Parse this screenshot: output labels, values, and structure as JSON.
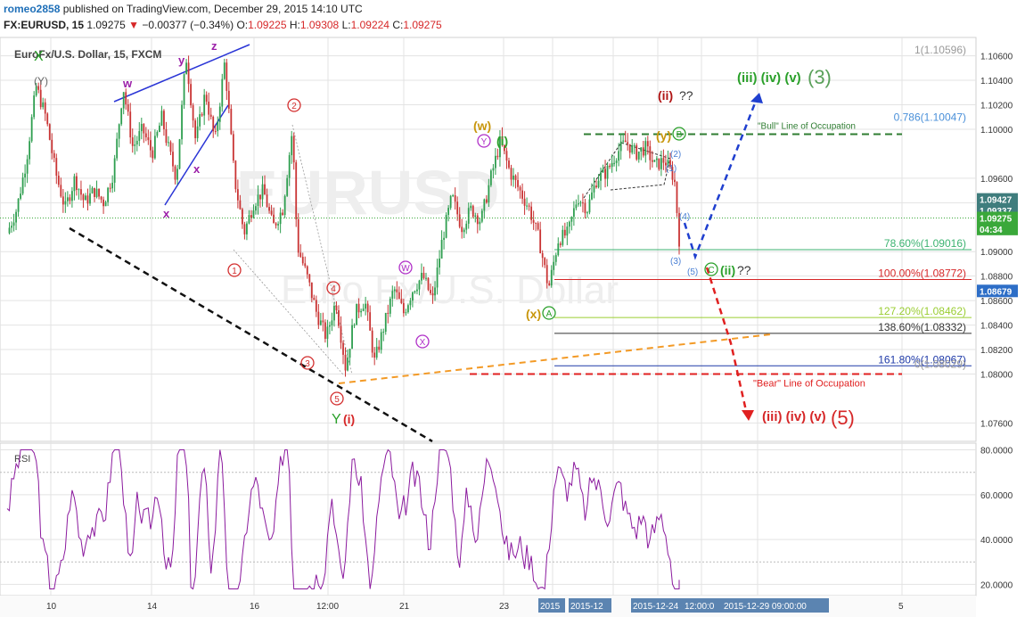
{
  "header": {
    "user": "romeo2858",
    "published": "published on TradingView.com, December 29, 2015 14:10 UTC",
    "symbol": "FX:EURUSD, 15",
    "last": "1.09275",
    "change_arrow": "▼",
    "change": "−0.00377 (−0.34%)",
    "o_label": "O:",
    "o": "1.09225",
    "h_label": "H:",
    "h": "1.09308",
    "l_label": "L:",
    "l": "1.09224",
    "c_label": "C:",
    "c": "1.09275"
  },
  "chart_data": {
    "type": "candlestick",
    "title": "EuroFx/U.S. Dollar, 15, FXCM",
    "watermark_symbol": "EURUSD",
    "watermark_name": "Euro Fx/U.S. Dollar",
    "ylim": [
      1.0745,
      1.1075
    ],
    "y_ticks": [
      "1.10600",
      "1.10400",
      "1.10200",
      "1.10000",
      "1.09600",
      "1.09400",
      "1.09000",
      "1.08800",
      "1.08600",
      "1.08400",
      "1.08200",
      "1.08000",
      "1.07600"
    ],
    "x_ticks": [
      "10",
      "14",
      "16",
      "12:00",
      "21",
      "23",
      "2015",
      "2015-12",
      "2015-12-24",
      "12:00:0",
      "2015-12-29 09:00:00",
      "5"
    ],
    "price_path": [
      {
        "t": 0,
        "p": 1.0915
      },
      {
        "t": 2,
        "p": 1.0935
      },
      {
        "t": 4,
        "p": 1.0975
      },
      {
        "t": 6,
        "p": 1.1035
      },
      {
        "t": 8,
        "p": 1.101
      },
      {
        "t": 10,
        "p": 1.0965
      },
      {
        "t": 12,
        "p": 1.0935
      },
      {
        "t": 14,
        "p": 1.096
      },
      {
        "t": 16,
        "p": 1.094
      },
      {
        "t": 18,
        "p": 1.095
      },
      {
        "t": 20,
        "p": 1.094
      },
      {
        "t": 22,
        "p": 1.0965
      },
      {
        "t": 24,
        "p": 1.1035
      },
      {
        "t": 26,
        "p": 1.0985
      },
      {
        "t": 28,
        "p": 1.1
      },
      {
        "t": 30,
        "p": 1.098
      },
      {
        "t": 32,
        "p": 1.101
      },
      {
        "t": 33,
        "p": 1.099
      },
      {
        "t": 35,
        "p": 1.096
      },
      {
        "t": 37,
        "p": 1.106
      },
      {
        "t": 39,
        "p": 1.099
      },
      {
        "t": 41,
        "p": 1.103
      },
      {
        "t": 43,
        "p": 1.099
      },
      {
        "t": 45,
        "p": 1.1055
      },
      {
        "t": 47,
        "p": 1.096
      },
      {
        "t": 49,
        "p": 1.0915
      },
      {
        "t": 51,
        "p": 1.094
      },
      {
        "t": 53,
        "p": 1.095
      },
      {
        "t": 55,
        "p": 1.092
      },
      {
        "t": 57,
        "p": 1.0935
      },
      {
        "t": 59,
        "p": 1.1
      },
      {
        "t": 60,
        "p": 1.0905
      },
      {
        "t": 62,
        "p": 1.088
      },
      {
        "t": 64,
        "p": 1.085
      },
      {
        "t": 66,
        "p": 1.083
      },
      {
        "t": 68,
        "p": 1.086
      },
      {
        "t": 70,
        "p": 1.0805
      },
      {
        "t": 72,
        "p": 1.085
      },
      {
        "t": 74,
        "p": 1.086
      },
      {
        "t": 76,
        "p": 1.081
      },
      {
        "t": 78,
        "p": 1.084
      },
      {
        "t": 80,
        "p": 1.087
      },
      {
        "t": 82,
        "p": 1.085
      },
      {
        "t": 84,
        "p": 1.087
      },
      {
        "t": 86,
        "p": 1.088
      },
      {
        "t": 88,
        "p": 1.086
      },
      {
        "t": 90,
        "p": 1.091
      },
      {
        "t": 92,
        "p": 1.0945
      },
      {
        "t": 94,
        "p": 1.092
      },
      {
        "t": 96,
        "p": 1.0935
      },
      {
        "t": 98,
        "p": 1.0925
      },
      {
        "t": 100,
        "p": 1.096
      },
      {
        "t": 102,
        "p": 1.099
      },
      {
        "t": 104,
        "p": 1.0965
      },
      {
        "t": 106,
        "p": 1.095
      },
      {
        "t": 108,
        "p": 1.0935
      },
      {
        "t": 110,
        "p": 1.091
      },
      {
        "t": 112,
        "p": 1.087
      },
      {
        "t": 114,
        "p": 1.091
      },
      {
        "t": 116,
        "p": 1.0915
      },
      {
        "t": 118,
        "p": 1.0945
      },
      {
        "t": 120,
        "p": 1.0935
      },
      {
        "t": 122,
        "p": 1.096
      },
      {
        "t": 124,
        "p": 1.0965
      },
      {
        "t": 126,
        "p": 1.098
      },
      {
        "t": 128,
        "p": 1.099
      },
      {
        "t": 130,
        "p": 1.098
      },
      {
        "t": 132,
        "p": 1.0985
      },
      {
        "t": 134,
        "p": 1.097
      },
      {
        "t": 136,
        "p": 1.0975
      },
      {
        "t": 138,
        "p": 1.096
      },
      {
        "t": 139,
        "p": 1.091
      }
    ],
    "rsi": {
      "label": "RSI",
      "ylim": [
        15,
        83
      ],
      "y_ticks": [
        "80.0000",
        "60.0000",
        "40.0000",
        "20.0000"
      ],
      "levels": [
        70,
        30
      ]
    },
    "price_labels": [
      {
        "text": "1.09427",
        "value": 1.09427,
        "color": "#3f7d7d"
      },
      {
        "text": "1.09337",
        "value": 1.09337,
        "color": "#3f7d7d"
      },
      {
        "text": "1.09275",
        "value": 1.09275,
        "color": "#3aa83a"
      },
      {
        "text": "04:34",
        "value": 1.09185,
        "color": "#3aa83a"
      },
      {
        "text": "1.08679",
        "value": 1.08679,
        "color": "#2d6ec7"
      }
    ],
    "fib_levels": [
      {
        "text": "1(1.10596)",
        "value": 1.10596,
        "color": "#999999",
        "line": false
      },
      {
        "text": "0.786(1.10047)",
        "value": 1.10047,
        "color": "#4a90d9",
        "line": false
      },
      {
        "text": "78.60%(1.09016)",
        "value": 1.09016,
        "color": "#3cb371",
        "line": true
      },
      {
        "text": "100.00%(1.08772)",
        "value": 1.08772,
        "color": "#d62728",
        "line": true
      },
      {
        "text": "127.20%(1.08462)",
        "value": 1.08462,
        "color": "#9acd32",
        "line": true
      },
      {
        "text": "138.60%(1.08332)",
        "value": 1.08332,
        "color": "#333333",
        "line": true
      },
      {
        "text": "161.80%(1.08067)",
        "value": 1.08067,
        "color": "#1f3aa8",
        "line": true
      },
      {
        "text": "0(1.08029)",
        "value": 1.08029,
        "color": "#999999",
        "line": false
      }
    ],
    "annotations": {
      "bull_line": "\"Bull\" Line of Occupation",
      "bear_line": "\"Bear\" Line of Occupation",
      "wave_top": "(iii) (iv) (v)",
      "wave_top_big": "(3)",
      "wave_bottom": "(iii) (iv) (v)",
      "wave_bottom_big": "(5)",
      "ii_label": "(ii)",
      "qq": "??",
      "ii_green": "(ii)",
      "qq2": "??",
      "labels_purple": [
        "w",
        "y",
        "z",
        "x",
        "x"
      ],
      "label_Y_paren": "(Y)",
      "label_X_green": "X",
      "label_Y_green": "Y",
      "label_i_red": "(i)",
      "label_w_paren": "(w)",
      "label_i_green": "(i)",
      "label_y_paren": "(y)",
      "label_x_paren": "(x)",
      "circled_purple": [
        "Y",
        "W",
        "X"
      ],
      "circled_red": [
        "1",
        "2",
        "3",
        "4",
        "5"
      ],
      "circled_green": [
        "B",
        "A",
        "C"
      ],
      "small_blue": [
        "(1)",
        "(2)",
        "(3)",
        "(4)",
        "(5)"
      ]
    },
    "colors": {
      "up": "#2e9e4f",
      "down": "#c93434",
      "grid": "#e3e3e3",
      "rsi": "#8b1a9e",
      "bull_dash": "#2f7d32",
      "bear_dash": "#e02020",
      "blue_proj": "#1f3fcf",
      "red_proj": "#e02020",
      "black_trend": "#111111",
      "orange_trend": "#f39a26",
      "blue_wedge": "#2a35d6",
      "circle_red": "#d32f2f",
      "circle_purple": "#b030c8",
      "circle_green": "#2aa02a"
    }
  }
}
